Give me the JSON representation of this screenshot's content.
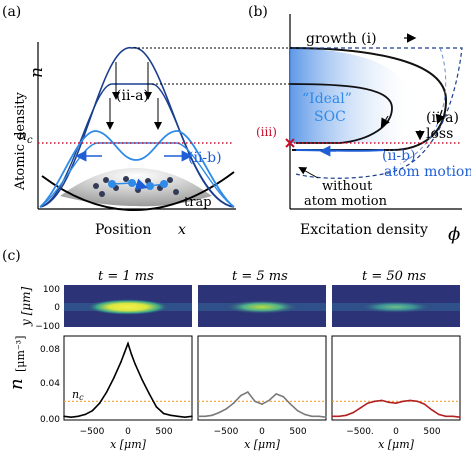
{
  "panel_a": {
    "label": "(a)",
    "ylabel": "Atomic density",
    "ylabel_sym": "n",
    "xlabel": "Position",
    "xlabel_sym": "x",
    "nc": "n",
    "nc_sub": "c",
    "ii_a": "(ii-a)",
    "ii_b": "(ii-b)",
    "trap": "trap"
  },
  "panel_b": {
    "label": "(b)",
    "growth": "growth (i)",
    "ideal1": "“Ideal”",
    "ideal2": "SOC",
    "iii": "(iii)",
    "ii_a": "(ii-a)",
    "loss": "loss",
    "ii_b": "(ii-b)",
    "atom_motion": "atom motion",
    "without1": "without",
    "without2": "atom motion",
    "xlabel": "Excitation density",
    "xsym": "ϕ"
  },
  "panel_c": {
    "label": "(c)",
    "img_ylabel": "y [μm]",
    "img_yticks": [
      "100",
      "0",
      "−100"
    ],
    "line_yticks": [
      "0.08",
      "0.04",
      "0.00"
    ],
    "line_ylabel_sym": "n",
    "line_ylabel_unit": "[μm⁻³]",
    "nc": "n",
    "nc_sub": "c",
    "xlabel": "x [μm]",
    "xticks": [
      "−500",
      "0",
      "500"
    ],
    "xticks_mid": [
      "−500",
      "0",
      "500"
    ],
    "xticks_last": [
      "−500.",
      "0",
      "500"
    ],
    "titles": [
      "t = 1 ms",
      "t = 5 ms",
      "t = 50 ms"
    ]
  },
  "chart_data": [
    {
      "type": "line",
      "title": "t = 1 ms",
      "xlabel": "x [μm]",
      "ylabel": "n [μm⁻³]",
      "xlim": [
        -900,
        900
      ],
      "ylim": [
        0,
        0.09
      ],
      "threshold_nc": 0.02,
      "color": "#000000",
      "x": [
        -900,
        -800,
        -700,
        -600,
        -500,
        -400,
        -300,
        -200,
        -100,
        -50,
        0,
        50,
        100,
        200,
        300,
        400,
        500,
        600,
        700,
        800,
        900
      ],
      "y": [
        0.004,
        0.003,
        0.004,
        0.006,
        0.01,
        0.018,
        0.03,
        0.045,
        0.062,
        0.072,
        0.082,
        0.07,
        0.06,
        0.043,
        0.028,
        0.014,
        0.007,
        0.005,
        0.004,
        0.003,
        0.004
      ]
    },
    {
      "type": "line",
      "title": "t = 5 ms",
      "xlabel": "x [μm]",
      "xlim": [
        -900,
        900
      ],
      "ylim": [
        0,
        0.09
      ],
      "threshold_nc": 0.02,
      "color": "#7a7a7a",
      "x": [
        -900,
        -800,
        -700,
        -600,
        -500,
        -400,
        -300,
        -200,
        -100,
        0,
        100,
        200,
        300,
        400,
        500,
        600,
        700,
        800,
        900
      ],
      "y": [
        0.004,
        0.004,
        0.005,
        0.008,
        0.012,
        0.018,
        0.026,
        0.03,
        0.02,
        0.017,
        0.021,
        0.028,
        0.025,
        0.017,
        0.01,
        0.006,
        0.004,
        0.004,
        0.003
      ]
    },
    {
      "type": "line",
      "title": "t = 50 ms",
      "xlabel": "x [μm]",
      "xlim": [
        -900,
        900
      ],
      "ylim": [
        0,
        0.09
      ],
      "threshold_nc": 0.02,
      "color": "#b22222",
      "x": [
        -900,
        -800,
        -700,
        -600,
        -500,
        -400,
        -300,
        -200,
        -100,
        0,
        100,
        200,
        300,
        400,
        500,
        600,
        700,
        800,
        900
      ],
      "y": [
        0.004,
        0.004,
        0.005,
        0.008,
        0.013,
        0.018,
        0.02,
        0.021,
        0.019,
        0.018,
        0.02,
        0.021,
        0.02,
        0.017,
        0.011,
        0.006,
        0.004,
        0.004,
        0.003
      ]
    }
  ]
}
